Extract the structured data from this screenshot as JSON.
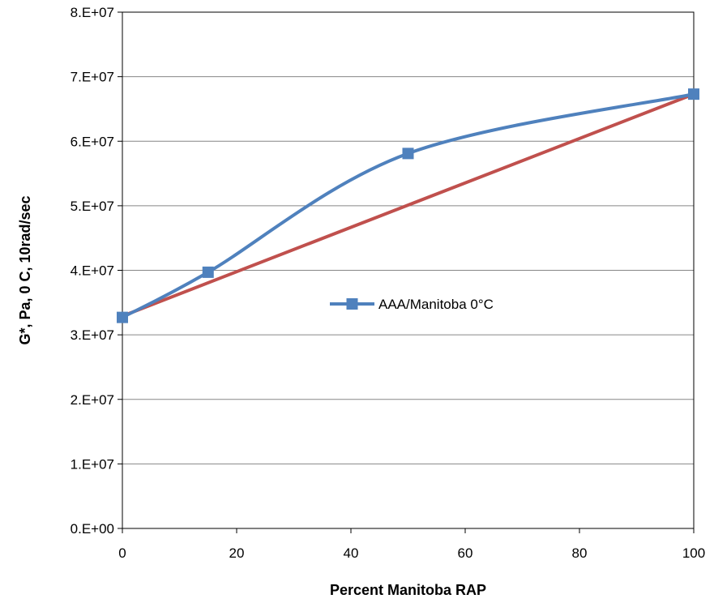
{
  "chart_data": {
    "type": "line",
    "xlabel": "Percent Manitoba RAP",
    "ylabel": "G*, Pa, 0  C, 10rad/sec",
    "xlim": [
      0,
      100
    ],
    "ylim": [
      0,
      80000000
    ],
    "x_ticks": [
      0,
      20,
      40,
      60,
      80,
      100
    ],
    "x_tick_labels": [
      "0",
      "20",
      "40",
      "60",
      "80",
      "100"
    ],
    "y_ticks": [
      0,
      10000000,
      20000000,
      30000000,
      40000000,
      50000000,
      60000000,
      70000000,
      80000000
    ],
    "y_tick_labels": [
      "0.E+00",
      "1.E+07",
      "2.E+07",
      "3.E+07",
      "4.E+07",
      "5.E+07",
      "6.E+07",
      "7.E+07",
      "8.E+07"
    ],
    "grid": "horizontal",
    "legend_position": "center",
    "series": [
      {
        "name": "AAA/Manitoba 0°C",
        "color": "#4F81BD",
        "marker": "square",
        "smooth": true,
        "x": [
          0,
          15,
          50,
          100
        ],
        "y": [
          32700000,
          39700000,
          58100000,
          67300000
        ]
      },
      {
        "color": "#C0504D",
        "marker": "none",
        "smooth": false,
        "x": [
          0,
          100
        ],
        "y": [
          32900000,
          67300000
        ]
      }
    ]
  }
}
